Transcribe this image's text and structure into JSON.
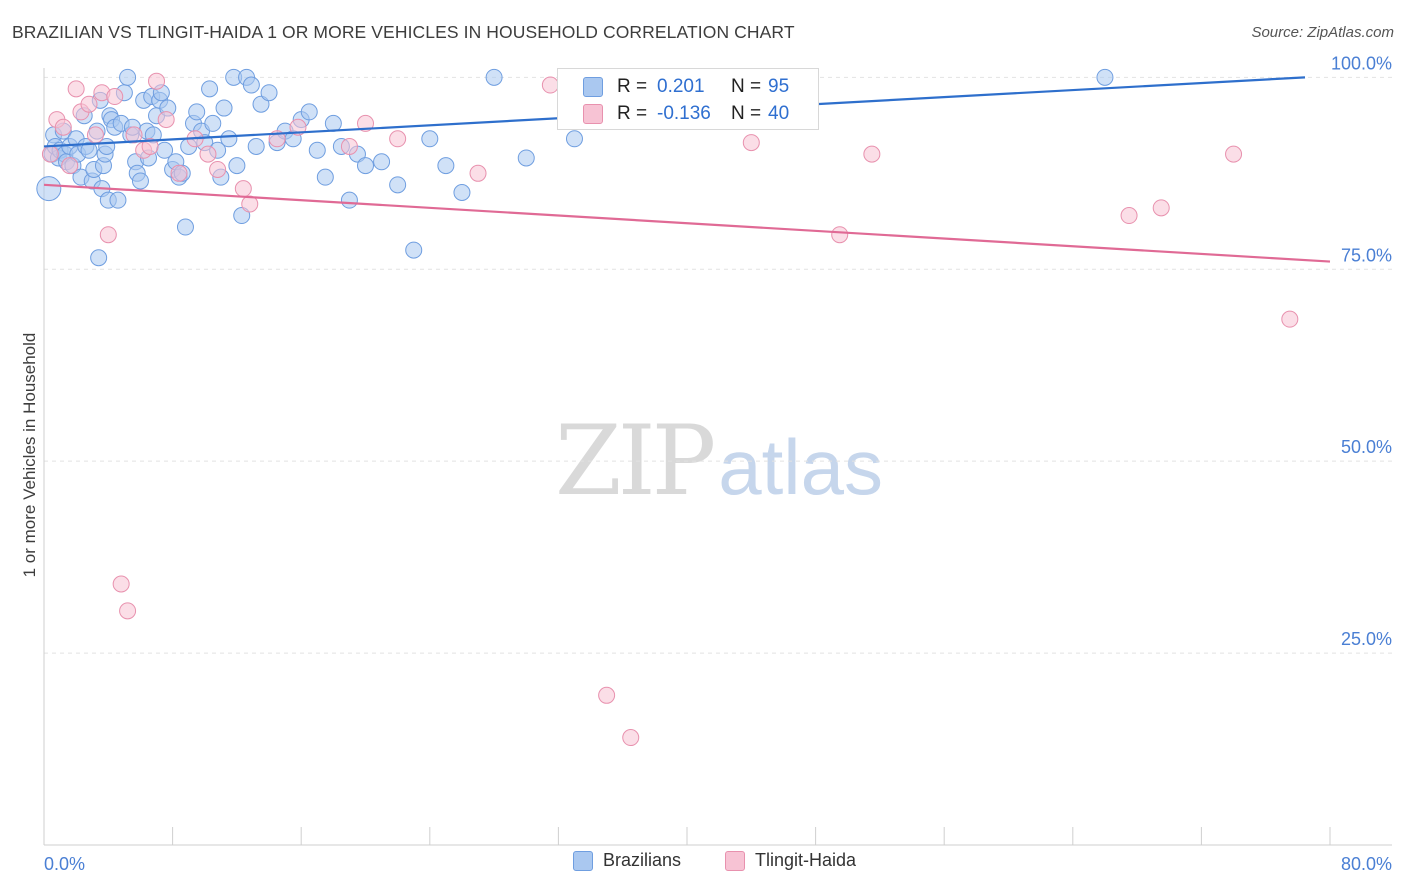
{
  "title": "BRAZILIAN VS TLINGIT-HAIDA 1 OR MORE VEHICLES IN HOUSEHOLD CORRELATION CHART",
  "source": "Source: ZipAtlas.com",
  "watermark": {
    "zip": "ZIP",
    "atlas": "atlas"
  },
  "stats": [
    {
      "r_label": "R =",
      "r_value": "0.201",
      "n_label": "N =",
      "n_value": "95",
      "color": "#aac8f0",
      "border": "#6f9ee0"
    },
    {
      "r_label": "R =",
      "r_value": "-0.136",
      "n_label": "N =",
      "n_value": "40",
      "color": "#f7c3d4",
      "border": "#e891ae"
    }
  ],
  "legend": [
    {
      "label": "Brazilians",
      "color": "#aac8f0",
      "border": "#6f9ee0"
    },
    {
      "label": "Tlingit-Haida",
      "color": "#f7c3d4",
      "border": "#e891ae"
    }
  ],
  "chart_data": {
    "type": "scatter",
    "title": "BRAZILIAN VS TLINGIT-HAIDA 1 OR MORE VEHICLES IN HOUSEHOLD CORRELATION CHART",
    "xlabel": "",
    "ylabel": "1 or more Vehicles in Household",
    "xlim": [
      0,
      80
    ],
    "ylim": [
      0,
      102
    ],
    "x_tick_labels": [
      "0.0%",
      "80.0%"
    ],
    "y_ticks": [
      25,
      50,
      75,
      100
    ],
    "y_tick_labels": [
      "25.0%",
      "50.0%",
      "75.0%",
      "100.0%"
    ],
    "grid": true,
    "series": [
      {
        "name": "Brazilians",
        "color": "#6f9ee0",
        "fill": "#aac8f0",
        "trend": {
          "x": [
            0,
            80
          ],
          "y": [
            91.0,
            100.0
          ],
          "color": "#2e6fcc"
        },
        "points": [
          [
            0.3,
            85.5
          ],
          [
            0.5,
            90.0
          ],
          [
            0.6,
            92.5
          ],
          [
            0.7,
            91.0
          ],
          [
            0.9,
            89.5
          ],
          [
            1.0,
            90.5
          ],
          [
            1.2,
            93.0
          ],
          [
            1.3,
            90.0
          ],
          [
            1.4,
            89.0
          ],
          [
            1.6,
            91.0
          ],
          [
            1.8,
            88.5
          ],
          [
            2.0,
            92.0
          ],
          [
            2.1,
            90.0
          ],
          [
            2.3,
            87.0
          ],
          [
            2.5,
            95.0
          ],
          [
            2.6,
            91.0
          ],
          [
            2.8,
            90.5
          ],
          [
            3.0,
            86.5
          ],
          [
            3.1,
            88.0
          ],
          [
            3.3,
            93.0
          ],
          [
            3.4,
            76.5
          ],
          [
            3.5,
            97.0
          ],
          [
            3.6,
            85.5
          ],
          [
            3.7,
            88.5
          ],
          [
            3.8,
            90.0
          ],
          [
            3.9,
            91.0
          ],
          [
            4.0,
            84.0
          ],
          [
            4.1,
            95.0
          ],
          [
            4.2,
            94.5
          ],
          [
            4.4,
            93.5
          ],
          [
            4.6,
            84.0
          ],
          [
            4.8,
            94.0
          ],
          [
            5.0,
            98.0
          ],
          [
            5.2,
            100.0
          ],
          [
            5.4,
            92.5
          ],
          [
            5.5,
            93.5
          ],
          [
            5.7,
            89.0
          ],
          [
            5.8,
            87.5
          ],
          [
            6.0,
            86.5
          ],
          [
            6.2,
            97.0
          ],
          [
            6.4,
            93.0
          ],
          [
            6.5,
            89.5
          ],
          [
            6.7,
            97.5
          ],
          [
            6.8,
            92.5
          ],
          [
            7.0,
            95.0
          ],
          [
            7.2,
            97.0
          ],
          [
            7.3,
            98.0
          ],
          [
            7.5,
            90.5
          ],
          [
            7.7,
            96.0
          ],
          [
            8.0,
            88.0
          ],
          [
            8.2,
            89.0
          ],
          [
            8.4,
            87.0
          ],
          [
            8.6,
            87.5
          ],
          [
            8.8,
            80.5
          ],
          [
            9.0,
            91.0
          ],
          [
            9.3,
            94.0
          ],
          [
            9.5,
            95.5
          ],
          [
            9.8,
            93.0
          ],
          [
            10.0,
            91.5
          ],
          [
            10.3,
            98.5
          ],
          [
            10.5,
            94.0
          ],
          [
            10.8,
            90.5
          ],
          [
            11.0,
            87.0
          ],
          [
            11.2,
            96.0
          ],
          [
            11.5,
            92.0
          ],
          [
            11.8,
            100.0
          ],
          [
            12.0,
            88.5
          ],
          [
            12.3,
            82.0
          ],
          [
            12.6,
            100.0
          ],
          [
            12.9,
            99.0
          ],
          [
            13.2,
            91.0
          ],
          [
            13.5,
            96.5
          ],
          [
            14.0,
            98.0
          ],
          [
            14.5,
            91.5
          ],
          [
            15.0,
            93.0
          ],
          [
            15.5,
            92.0
          ],
          [
            16.0,
            94.5
          ],
          [
            16.5,
            95.5
          ],
          [
            17.0,
            90.5
          ],
          [
            17.5,
            87.0
          ],
          [
            18.0,
            94.0
          ],
          [
            18.5,
            91.0
          ],
          [
            19.0,
            84.0
          ],
          [
            19.5,
            90.0
          ],
          [
            20.0,
            88.5
          ],
          [
            21.0,
            89.0
          ],
          [
            22.0,
            86.0
          ],
          [
            23.0,
            77.5
          ],
          [
            24.0,
            92.0
          ],
          [
            25.0,
            88.5
          ],
          [
            26.0,
            85.0
          ],
          [
            28.0,
            100.0
          ],
          [
            30.0,
            89.5
          ],
          [
            33.0,
            92.0
          ],
          [
            66.0,
            100.0
          ]
        ]
      },
      {
        "name": "Tlingit-Haida",
        "color": "#e891ae",
        "fill": "#f7c3d4",
        "trend": {
          "x": [
            0,
            80
          ],
          "y": [
            86.0,
            76.0
          ],
          "color": "#e06a95"
        },
        "points": [
          [
            0.4,
            90.0
          ],
          [
            0.8,
            94.5
          ],
          [
            1.2,
            93.5
          ],
          [
            1.6,
            88.5
          ],
          [
            2.0,
            98.5
          ],
          [
            2.3,
            95.5
          ],
          [
            2.8,
            96.5
          ],
          [
            3.2,
            92.5
          ],
          [
            3.6,
            98.0
          ],
          [
            4.0,
            79.5
          ],
          [
            4.4,
            97.5
          ],
          [
            4.8,
            34.0
          ],
          [
            5.2,
            30.5
          ],
          [
            5.6,
            92.5
          ],
          [
            6.2,
            90.5
          ],
          [
            6.6,
            91.0
          ],
          [
            7.0,
            99.5
          ],
          [
            7.6,
            94.5
          ],
          [
            8.4,
            87.5
          ],
          [
            9.4,
            92.0
          ],
          [
            10.2,
            90.0
          ],
          [
            10.8,
            88.0
          ],
          [
            12.4,
            85.5
          ],
          [
            12.8,
            83.5
          ],
          [
            14.5,
            92.0
          ],
          [
            15.8,
            93.5
          ],
          [
            20.0,
            94.0
          ],
          [
            22.0,
            92.0
          ],
          [
            27.0,
            87.5
          ],
          [
            35.0,
            19.5
          ],
          [
            36.5,
            14.0
          ],
          [
            44.0,
            91.5
          ],
          [
            49.5,
            79.5
          ],
          [
            51.5,
            90.0
          ],
          [
            67.5,
            82.0
          ],
          [
            69.5,
            83.0
          ],
          [
            74.0,
            90.0
          ],
          [
            77.5,
            68.5
          ],
          [
            19.0,
            91.0
          ],
          [
            31.5,
            99.0
          ]
        ]
      }
    ]
  }
}
